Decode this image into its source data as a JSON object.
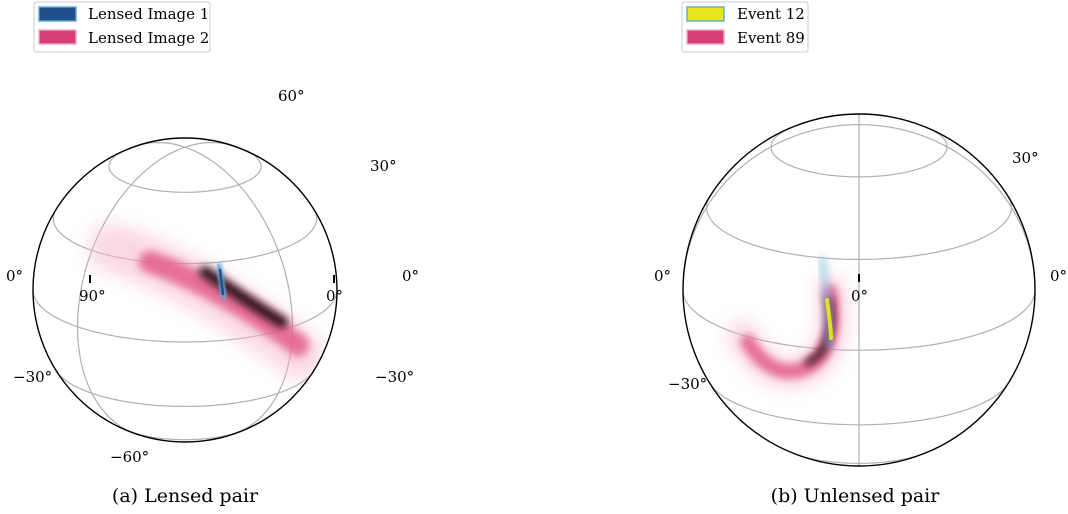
{
  "chart_data": [
    {
      "type": "skymap",
      "panel": "(a)",
      "caption": "(a) Lensed pair",
      "legend": {
        "placement": "top-left",
        "entries": [
          {
            "label": "Lensed Image 1",
            "color": "#1f4e8c"
          },
          {
            "label": "Lensed Image 2",
            "color": "#d63f77"
          }
        ]
      },
      "projection": {
        "center_lon": 45,
        "center_lat": 20
      },
      "grid": true,
      "tick_labels": [
        {
          "text": "60°",
          "lat": 60
        },
        {
          "text": "30°",
          "lat": 30
        },
        {
          "text": "0°",
          "side": "left",
          "lat": 0
        },
        {
          "text": "0°",
          "side": "right",
          "lat": 0
        },
        {
          "text": "90°",
          "lon": 90
        },
        {
          "text": "0°",
          "lon": 0
        },
        {
          "text": "−30°",
          "side": "left",
          "lat": -30
        },
        {
          "text": "−30°",
          "side": "right",
          "lat": -30
        },
        {
          "text": "−60°",
          "lat": -60
        }
      ],
      "series": [
        {
          "name": "Lensed Image 2",
          "color": "#d63f77",
          "points": [
            [
              120,
              2
            ],
            [
              98,
              -8
            ],
            [
              80,
              -14
            ],
            [
              70,
              -17
            ],
            [
              60,
              -20
            ],
            [
              48,
              -24
            ],
            [
              36,
              -28
            ],
            [
              22,
              -35
            ]
          ]
        },
        {
          "name": "Lensed Image 1",
          "color": "#1f4e8c",
          "points": [
            [
              80,
              -12
            ],
            [
              79,
              -16
            ],
            [
              78,
              -20
            ]
          ]
        }
      ]
    },
    {
      "type": "skymap",
      "panel": "(b)",
      "caption": "(b) Unlensed pair",
      "legend": {
        "placement": "top-left",
        "entries": [
          {
            "label": "Event 12",
            "color": "#e6e61a"
          },
          {
            "label": "Event 89",
            "color": "#d63f77"
          }
        ]
      },
      "projection": {
        "center_lon": 0,
        "center_lat": 20
      },
      "grid": true,
      "tick_labels": [
        {
          "text": "30°",
          "lat": 30
        },
        {
          "text": "0°",
          "side": "left",
          "lat": 0
        },
        {
          "text": "0°",
          "side": "right",
          "lat": 0
        },
        {
          "text": "0°",
          "lon": 0
        },
        {
          "text": "−30°",
          "side": "left",
          "lat": -30
        }
      ],
      "series": [
        {
          "name": "Event 89",
          "color": "#d63f77",
          "points": [
            [
              -2,
              -8
            ],
            [
              -4,
              -20
            ],
            [
              -10,
              -30
            ],
            [
              -20,
              -35
            ],
            [
              -30,
              -35
            ],
            [
              -40,
              -32
            ],
            [
              -50,
              -25
            ]
          ]
        },
        {
          "name": "Event 12",
          "color": "#e6e61a",
          "points": [
            [
              -3,
              2
            ],
            [
              -3,
              -6
            ],
            [
              -4,
              -12
            ],
            [
              -5,
              -18
            ]
          ]
        }
      ]
    }
  ]
}
